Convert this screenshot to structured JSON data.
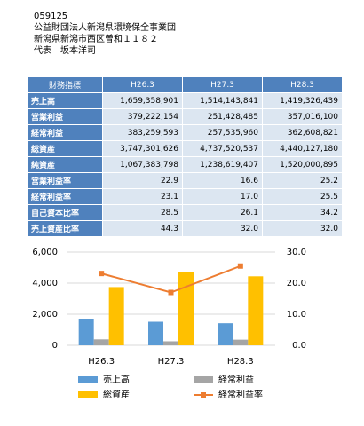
{
  "header": {
    "code": "059125",
    "name": "公益財団法人新潟県環境保全事業団",
    "address": "新潟県新潟市西区曽和１１８２",
    "representative": "代表　坂本洋司"
  },
  "table": {
    "header": [
      "財務指標",
      "H26.3",
      "H27.3",
      "H28.3"
    ],
    "rows": [
      [
        "売上高",
        "1,659,358,901",
        "1,514,143,841",
        "1,419,326,439"
      ],
      [
        "営業利益",
        "379,222,154",
        "251,428,485",
        "357,016,100"
      ],
      [
        "経常利益",
        "383,259,593",
        "257,535,960",
        "362,608,821"
      ],
      [
        "総資産",
        "3,747,301,626",
        "4,737,520,537",
        "4,440,127,180"
      ],
      [
        "純資産",
        "1,067,383,798",
        "1,238,619,407",
        "1,520,000,895"
      ],
      [
        "営業利益率",
        "22.9",
        "16.6",
        "25.2"
      ],
      [
        "経常利益率",
        "23.1",
        "17.0",
        "25.5"
      ],
      [
        "自己資本比率",
        "28.5",
        "26.1",
        "34.2"
      ],
      [
        "売上資産比率",
        "44.3",
        "32.0",
        "32.0"
      ]
    ]
  },
  "chart_data": {
    "type": "bar",
    "categories": [
      "H26.3",
      "H27.3",
      "H28.3"
    ],
    "series": [
      {
        "name": "売上高",
        "color": "#5b9bd5",
        "type": "bar",
        "values": [
          1659,
          1514,
          1419
        ]
      },
      {
        "name": "経常利益",
        "color": "#a5a5a5",
        "type": "bar",
        "values": [
          383,
          258,
          363
        ]
      },
      {
        "name": "総資産",
        "color": "#ffc000",
        "type": "bar",
        "values": [
          3747,
          4738,
          4440
        ]
      },
      {
        "name": "経常利益率",
        "color": "#ed7d31",
        "type": "line",
        "axis": "y2",
        "values": [
          23.1,
          17.0,
          25.5
        ]
      }
    ],
    "ylim": [
      0,
      6000
    ],
    "yticks": [
      0,
      {
        "value": 2000,
        "label": "2,000"
      },
      {
        "value": 4000,
        "label": "4,000"
      },
      {
        "value": 6000,
        "label": "6,000"
      }
    ],
    "y2lim": [
      0,
      30
    ],
    "y2ticks": [
      {
        "value": 0,
        "label": "0.0"
      },
      {
        "value": 10,
        "label": "10.0"
      },
      {
        "value": 20,
        "label": "20.0"
      },
      {
        "value": 30,
        "label": "30.0"
      }
    ],
    "grid": true
  }
}
